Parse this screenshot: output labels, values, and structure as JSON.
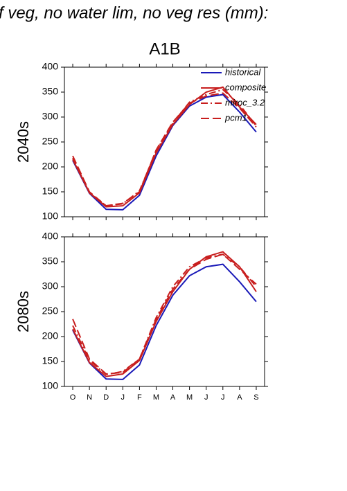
{
  "chart_data": [
    {
      "type": "line",
      "title": "f veg, no water lim, no veg res (mm):",
      "subtitle": "A1B",
      "ylabel": "2040s",
      "ylim": [
        100,
        400
      ],
      "yticks": [
        100,
        150,
        200,
        250,
        300,
        350,
        400
      ],
      "legend": "upper right",
      "series": [
        {
          "name": "historical",
          "color": "#1a1ab8",
          "dash": "solid",
          "values": [
            213,
            147,
            115,
            114,
            143,
            222,
            283,
            322,
            340,
            345,
            310,
            270
          ]
        },
        {
          "name": "composite",
          "color": "#c81e1e",
          "dash": "solid",
          "values": [
            215,
            148,
            120,
            122,
            148,
            228,
            285,
            325,
            350,
            360,
            320,
            285
          ]
        },
        {
          "name": "miroc_3.2",
          "color": "#c81e1e",
          "dash": "dashdot",
          "values": [
            218,
            148,
            122,
            126,
            152,
            232,
            288,
            330,
            345,
            355,
            325,
            282
          ]
        },
        {
          "name": "pcm1",
          "color": "#c81e1e",
          "dash": "dashed",
          "values": [
            222,
            150,
            122,
            127,
            150,
            234,
            290,
            328,
            342,
            348,
            318,
            280
          ]
        }
      ]
    },
    {
      "type": "line",
      "ylabel": "2080s",
      "categories": [
        "O",
        "N",
        "D",
        "J",
        "F",
        "M",
        "A",
        "M",
        "J",
        "J",
        "A",
        "S"
      ],
      "ylim": [
        100,
        400
      ],
      "yticks": [
        100,
        150,
        200,
        250,
        300,
        350,
        400
      ],
      "series": [
        {
          "color": "#1a1ab8",
          "dash": "solid",
          "values": [
            213,
            147,
            115,
            114,
            143,
            222,
            283,
            322,
            340,
            345,
            310,
            270
          ]
        },
        {
          "color": "#c81e1e",
          "dash": "solid",
          "values": [
            215,
            148,
            120,
            125,
            152,
            230,
            290,
            335,
            360,
            370,
            340,
            290
          ]
        },
        {
          "color": "#c81e1e",
          "dash": "dashdot",
          "values": [
            222,
            152,
            124,
            130,
            155,
            238,
            300,
            340,
            358,
            365,
            340,
            300
          ]
        },
        {
          "color": "#c81e1e",
          "dash": "dashed",
          "values": [
            235,
            155,
            125,
            128,
            155,
            235,
            295,
            335,
            355,
            365,
            335,
            305
          ]
        }
      ]
    }
  ]
}
